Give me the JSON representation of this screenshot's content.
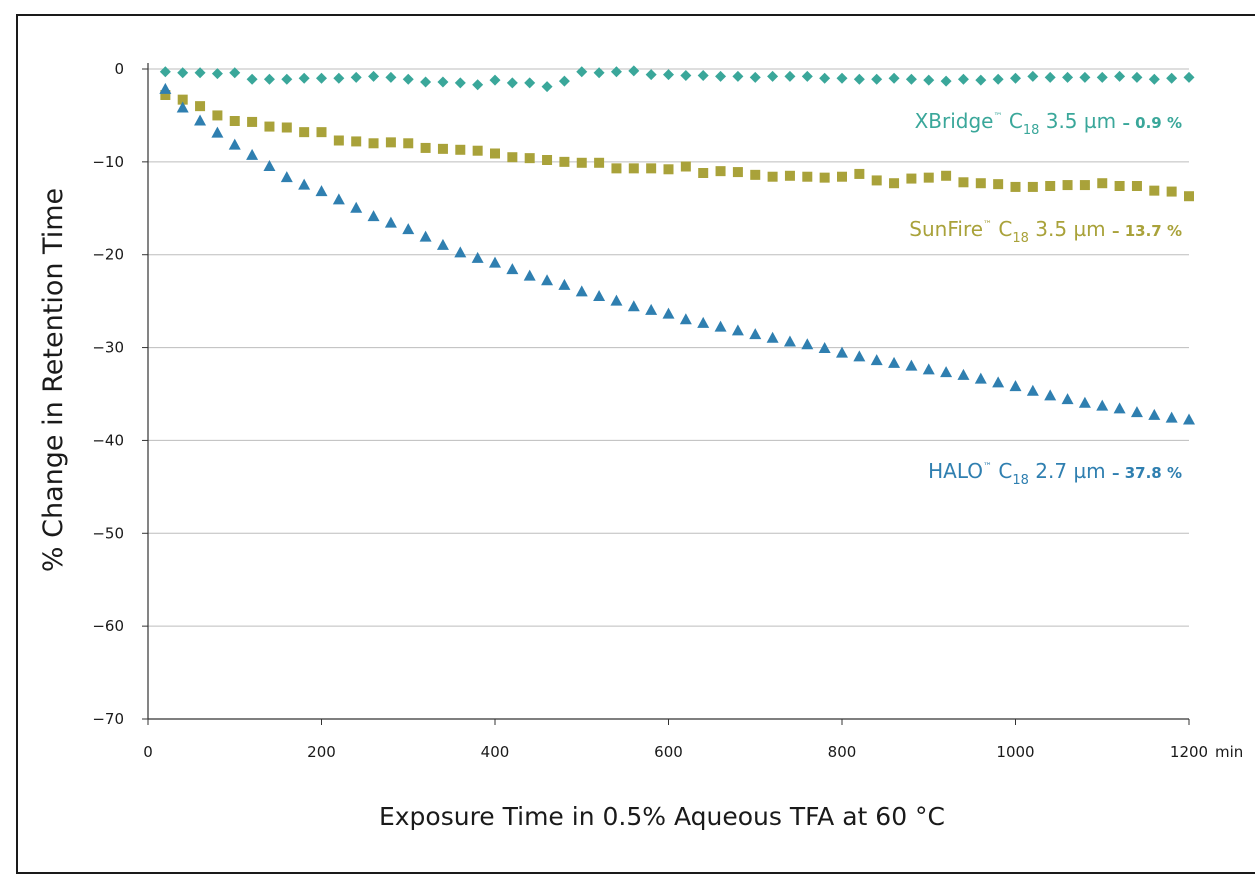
{
  "chart_data": {
    "type": "scatter",
    "title": "",
    "xlabel": "Exposure Time in 0.5% Aqueous TFA at 60 °C",
    "ylabel": "% Change in Retention Time",
    "x_unit": "min",
    "xlim": [
      0,
      1200
    ],
    "ylim": [
      -70,
      0
    ],
    "x_ticks": [
      0,
      200,
      400,
      600,
      800,
      1000,
      1200
    ],
    "x_tick_labels": [
      "0",
      "200",
      "400",
      "600",
      "800",
      "1000",
      "1200"
    ],
    "y_ticks": [
      0,
      -10,
      -20,
      -30,
      -40,
      -50,
      -60,
      -70
    ],
    "y_tick_labels": [
      "0",
      "−10",
      "−20",
      "−30",
      "−40",
      "−50",
      "−60",
      "−70"
    ],
    "grid": "horizontal",
    "series": [
      {
        "name": "XBridge™ C18 3.5 µm",
        "label_parts": {
          "base": "XBridge",
          "tm": "™",
          "c": "C",
          "sub": "18",
          "rest": " 3.5 µm",
          "pct": "– 0.9 %"
        },
        "color": "#3aa79a",
        "marker": "diamond",
        "x": [
          20,
          40,
          60,
          80,
          100,
          120,
          140,
          160,
          180,
          200,
          220,
          240,
          260,
          280,
          300,
          320,
          340,
          360,
          380,
          400,
          420,
          440,
          460,
          480,
          500,
          520,
          540,
          560,
          580,
          600,
          620,
          640,
          660,
          680,
          700,
          720,
          740,
          760,
          780,
          800,
          820,
          840,
          860,
          880,
          900,
          920,
          940,
          960,
          980,
          1000,
          1020,
          1040,
          1060,
          1080,
          1100,
          1120,
          1140,
          1160,
          1180,
          1200
        ],
        "y": [
          -0.3,
          -0.4,
          -0.4,
          -0.5,
          -0.4,
          -1.1,
          -1.1,
          -1.1,
          -1.0,
          -1.0,
          -1.0,
          -0.9,
          -0.8,
          -0.9,
          -1.1,
          -1.4,
          -1.4,
          -1.5,
          -1.7,
          -1.2,
          -1.5,
          -1.5,
          -1.9,
          -1.3,
          -0.3,
          -0.4,
          -0.3,
          -0.2,
          -0.6,
          -0.6,
          -0.7,
          -0.7,
          -0.8,
          -0.8,
          -0.9,
          -0.8,
          -0.8,
          -0.8,
          -1.0,
          -1.0,
          -1.1,
          -1.1,
          -1.0,
          -1.1,
          -1.2,
          -1.3,
          -1.1,
          -1.2,
          -1.1,
          -1.0,
          -0.8,
          -0.9,
          -0.9,
          -0.9,
          -0.9,
          -0.8,
          -0.9,
          -1.1,
          -1.0,
          -0.9
        ]
      },
      {
        "name": "SunFire™ C18 3.5 µm",
        "label_parts": {
          "base": "SunFire",
          "tm": "™",
          "c": "C",
          "sub": "18",
          "rest": " 3.5 µm",
          "pct": "– 13.7 %"
        },
        "color": "#a9a23a",
        "marker": "square",
        "x": [
          20,
          40,
          60,
          80,
          100,
          120,
          140,
          160,
          180,
          200,
          220,
          240,
          260,
          280,
          300,
          320,
          340,
          360,
          380,
          400,
          420,
          440,
          460,
          480,
          500,
          520,
          540,
          560,
          580,
          600,
          620,
          640,
          660,
          680,
          700,
          720,
          740,
          760,
          780,
          800,
          820,
          840,
          860,
          880,
          900,
          920,
          940,
          960,
          980,
          1000,
          1020,
          1040,
          1060,
          1080,
          1100,
          1120,
          1140,
          1160,
          1180,
          1200
        ],
        "y": [
          -2.8,
          -3.3,
          -4.0,
          -5.0,
          -5.6,
          -5.7,
          -6.2,
          -6.3,
          -6.8,
          -6.8,
          -7.7,
          -7.8,
          -8.0,
          -7.9,
          -8.0,
          -8.5,
          -8.6,
          -8.7,
          -8.8,
          -9.1,
          -9.5,
          -9.6,
          -9.8,
          -10.0,
          -10.1,
          -10.1,
          -10.7,
          -10.7,
          -10.7,
          -10.8,
          -10.5,
          -11.2,
          -11.0,
          -11.1,
          -11.4,
          -11.6,
          -11.5,
          -11.6,
          -11.7,
          -11.6,
          -11.3,
          -12.0,
          -12.3,
          -11.8,
          -11.7,
          -11.5,
          -12.2,
          -12.3,
          -12.4,
          -12.7,
          -12.7,
          -12.6,
          -12.5,
          -12.5,
          -12.3,
          -12.6,
          -12.6,
          -13.1,
          -13.2,
          -13.7
        ]
      },
      {
        "name": "HALO™ C18 2.7 µm",
        "label_parts": {
          "base": "HALO",
          "tm": "™",
          "c": "C",
          "sub": "18",
          "rest": " 2.7 µm",
          "pct": "– 37.8 %"
        },
        "color": "#2f7fb0",
        "marker": "triangle",
        "x": [
          20,
          40,
          60,
          80,
          100,
          120,
          140,
          160,
          180,
          200,
          220,
          240,
          260,
          280,
          300,
          320,
          340,
          360,
          380,
          400,
          420,
          440,
          460,
          480,
          500,
          520,
          540,
          560,
          580,
          600,
          620,
          640,
          660,
          680,
          700,
          720,
          740,
          760,
          780,
          800,
          820,
          840,
          860,
          880,
          900,
          920,
          940,
          960,
          980,
          1000,
          1020,
          1040,
          1060,
          1080,
          1100,
          1120,
          1140,
          1160,
          1180,
          1200
        ],
        "y": [
          -2.2,
          -4.2,
          -5.6,
          -6.9,
          -8.2,
          -9.3,
          -10.5,
          -11.7,
          -12.5,
          -13.2,
          -14.1,
          -15.0,
          -15.9,
          -16.6,
          -17.3,
          -18.1,
          -19.0,
          -19.8,
          -20.4,
          -20.9,
          -21.6,
          -22.3,
          -22.8,
          -23.3,
          -24.0,
          -24.5,
          -25.0,
          -25.6,
          -26.0,
          -26.4,
          -27.0,
          -27.4,
          -27.8,
          -28.2,
          -28.6,
          -29.0,
          -29.4,
          -29.7,
          -30.1,
          -30.6,
          -31.0,
          -31.4,
          -31.7,
          -32.0,
          -32.4,
          -32.7,
          -33.0,
          -33.4,
          -33.8,
          -34.2,
          -34.7,
          -35.2,
          -35.6,
          -36.0,
          -36.3,
          -36.6,
          -37.0,
          -37.3,
          -37.6,
          -37.8
        ]
      }
    ]
  }
}
